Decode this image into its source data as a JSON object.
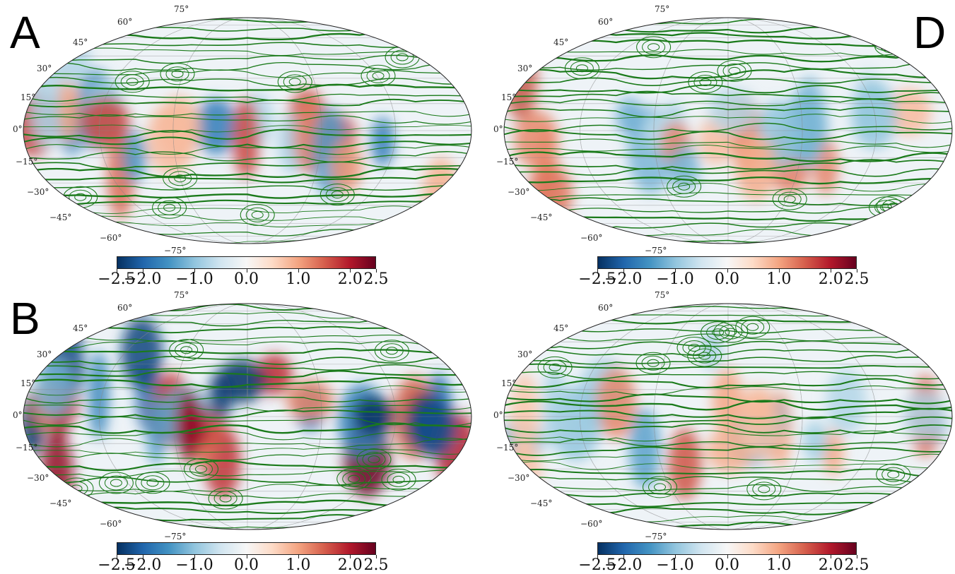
{
  "panels": [
    {
      "id": "A",
      "letter": "A",
      "letter_side": "left",
      "seed": 3,
      "amp": 0.9
    },
    {
      "id": "D",
      "letter": "D",
      "letter_side": "right",
      "seed": 11,
      "amp": 0.75
    },
    {
      "id": "B",
      "letter": "B",
      "letter_side": "left",
      "seed": 7,
      "amp": 1.4
    },
    {
      "id": "C",
      "letter": "",
      "letter_side": "right",
      "seed": 19,
      "amp": 0.8
    }
  ],
  "lat_labels": [
    "75°",
    "60°",
    "45°",
    "30°",
    "15°",
    "0°",
    "−15°",
    "−30°",
    "−45°",
    "−60°",
    "−75°"
  ],
  "colorbar": {
    "ticks": [
      "−2.5",
      "−2.0",
      "−1.0",
      "0.0",
      "1.0",
      "2.0",
      "2.5"
    ],
    "tick_values": [
      -2.5,
      -2.0,
      -1.0,
      0.0,
      1.0,
      2.0,
      2.5
    ],
    "range": [
      -2.5,
      2.5
    ],
    "colormap": [
      "#053061",
      "#2166ac",
      "#4393c3",
      "#92c5de",
      "#d1e5f0",
      "#f7f7f7",
      "#fddbc7",
      "#f4a582",
      "#d6604d",
      "#b2182b",
      "#67001f"
    ]
  },
  "colors": {
    "streamline": "#1a7a1a",
    "coast": "#555555",
    "grid": "#888888"
  }
}
